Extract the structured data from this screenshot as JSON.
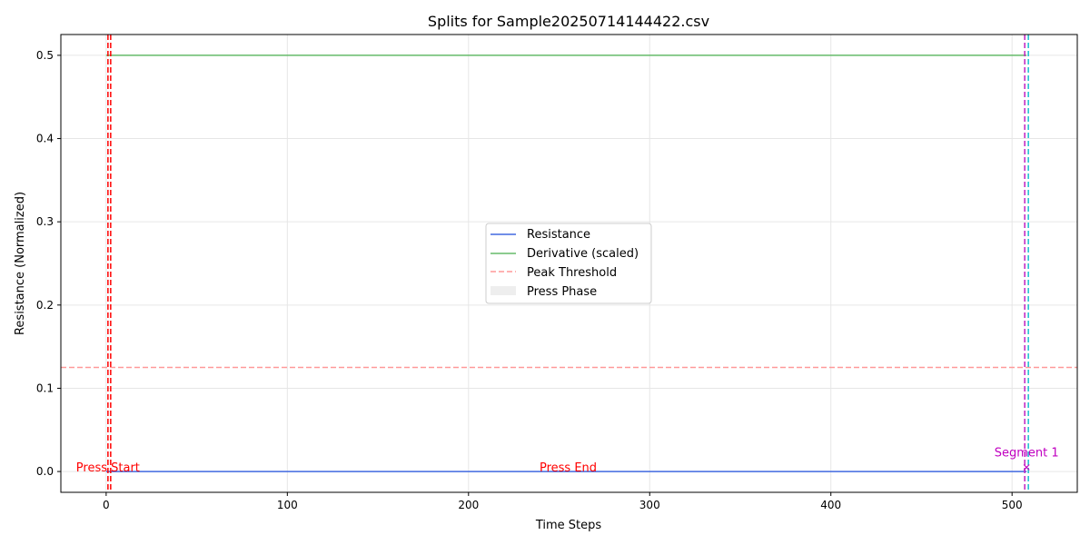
{
  "chart_data": {
    "type": "line",
    "title": "Splits for Sample20250714144422.csv",
    "xlabel": "Time Steps",
    "ylabel": "Resistance (Normalized)",
    "xlim": [
      -25,
      536
    ],
    "ylim": [
      -0.025,
      0.525
    ],
    "xticks": [
      0,
      100,
      200,
      300,
      400,
      500
    ],
    "yticks": [
      0.0,
      0.1,
      0.2,
      0.3,
      0.4,
      0.5
    ],
    "ytick_labels": [
      "0.0",
      "0.1",
      "0.2",
      "0.3",
      "0.4",
      "0.5"
    ],
    "grid": true,
    "legend_position": "center",
    "series": [
      {
        "name": "Resistance",
        "color": "#4169e1",
        "style": "solid",
        "x": [
          0,
          508
        ],
        "y": [
          0.0,
          0.0
        ]
      },
      {
        "name": "Derivative (scaled)",
        "color": "#66bb6a",
        "style": "solid",
        "x": [
          0,
          508
        ],
        "y": [
          0.5,
          0.5
        ]
      }
    ],
    "hlines": [
      {
        "name": "Peak Threshold",
        "y": 0.125,
        "color": "#ff9999",
        "style": "dashed"
      }
    ],
    "press_phase": {
      "name": "Press Phase",
      "color": "#eeeeee"
    },
    "vlines": [
      {
        "x": 1,
        "color": "#ff0000",
        "style": "dashed"
      },
      {
        "x": 2.5,
        "color": "#ff0000",
        "style": "dashed"
      },
      {
        "x": 507,
        "color": "#c020c0",
        "style": "dashed"
      },
      {
        "x": 509,
        "color": "#17becf",
        "style": "dashed"
      }
    ],
    "annotations": [
      {
        "text": "Press Start",
        "x": 1,
        "y": 0.0,
        "color": "#ff0000"
      },
      {
        "text": "Press End",
        "x": 255,
        "y": 0.0,
        "color": "#ff0000"
      },
      {
        "text": "Segment 1",
        "x": 508,
        "y": 0.018,
        "color": "#c000c0"
      }
    ],
    "markers": [
      {
        "symbol": "x",
        "x": 508,
        "y": 0.005,
        "color": "#c000c0"
      }
    ]
  }
}
